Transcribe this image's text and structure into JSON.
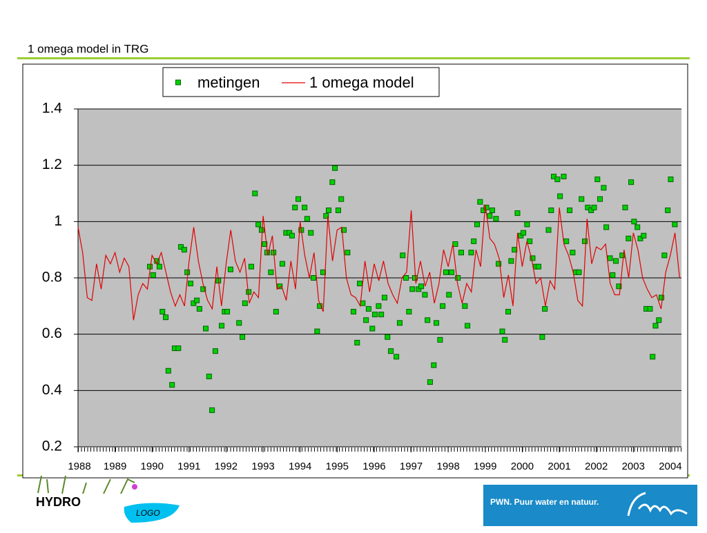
{
  "chart_data": {
    "type": "line",
    "title": "1 omega model in TRG",
    "xlim": [
      1988,
      2004.3
    ],
    "xticks": [
      1988,
      1989,
      1990,
      1991,
      1992,
      1993,
      1994,
      1995,
      1996,
      1997,
      1998,
      1999,
      2000,
      2001,
      2002,
      2003,
      2004
    ],
    "ylim": [
      0.2,
      1.4
    ],
    "yticks": [
      0.2,
      0.4,
      0.6,
      0.8,
      1,
      1.2,
      1.4
    ],
    "grid": true,
    "legend": "top",
    "series": [
      {
        "name": "metingen",
        "type": "scatter",
        "color": "#00d000",
        "x": [
          1989.94,
          1990.03,
          1990.13,
          1990.2,
          1990.28,
          1990.37,
          1990.44,
          1990.54,
          1990.61,
          1990.71,
          1990.78,
          1990.87,
          1990.95,
          1991.04,
          1991.12,
          1991.21,
          1991.28,
          1991.38,
          1991.45,
          1991.54,
          1991.62,
          1991.71,
          1991.79,
          1991.88,
          1991.96,
          1992.03,
          1992.12,
          1992.35,
          1992.44,
          1992.51,
          1992.61,
          1992.68,
          1992.78,
          1992.87,
          1992.96,
          1993.04,
          1993.11,
          1993.21,
          1993.28,
          1993.35,
          1993.45,
          1993.52,
          1993.62,
          1993.71,
          1993.78,
          1993.86,
          1993.95,
          1994.03,
          1994.12,
          1994.19,
          1994.29,
          1994.36,
          1994.46,
          1994.53,
          1994.62,
          1994.7,
          1994.77,
          1994.87,
          1994.94,
          1995.03,
          1995.11,
          1995.18,
          1995.28,
          1995.44,
          1995.54,
          1995.61,
          1995.69,
          1995.78,
          1995.85,
          1995.95,
          1996.02,
          1996.12,
          1996.19,
          1996.28,
          1996.36,
          1996.45,
          1996.6,
          1996.69,
          1996.77,
          1996.86,
          1996.94,
          1997.03,
          1997.1,
          1997.2,
          1997.27,
          1997.37,
          1997.44,
          1997.51,
          1997.61,
          1997.68,
          1997.78,
          1997.85,
          1997.94,
          1998.02,
          1998.09,
          1998.19,
          1998.26,
          1998.35,
          1998.45,
          1998.52,
          1998.62,
          1998.69,
          1998.78,
          1998.86,
          1998.95,
          1999.03,
          1999.12,
          1999.19,
          1999.29,
          1999.36,
          1999.46,
          1999.53,
          1999.62,
          1999.7,
          1999.79,
          1999.87,
          1999.96,
          2000.03,
          2000.13,
          2000.2,
          2000.28,
          2000.37,
          2000.44,
          2000.54,
          2000.61,
          2000.71,
          2000.78,
          2000.85,
          2000.95,
          2001.02,
          2001.12,
          2001.19,
          2001.28,
          2001.36,
          2001.45,
          2001.53,
          2001.6,
          2001.69,
          2001.77,
          2001.86,
          2001.94,
          2002.03,
          2002.1,
          2002.2,
          2002.27,
          2002.37,
          2002.44,
          2002.53,
          2002.61,
          2002.7,
          2002.78,
          2002.87,
          2002.94,
          2003.02,
          2003.11,
          2003.19,
          2003.28,
          2003.35,
          2003.45,
          2003.52,
          2003.6,
          2003.69,
          2003.76,
          2003.84,
          2003.93,
          2004.01,
          2004.12
        ],
        "values": [
          0.84,
          0.81,
          0.86,
          0.84,
          0.68,
          0.66,
          0.47,
          0.42,
          0.55,
          0.55,
          0.91,
          0.9,
          0.82,
          0.78,
          0.71,
          0.72,
          0.69,
          0.76,
          0.62,
          0.45,
          0.33,
          0.54,
          0.79,
          0.63,
          0.68,
          0.68,
          0.83,
          0.64,
          0.59,
          0.71,
          0.75,
          0.84,
          1.1,
          0.99,
          0.97,
          0.92,
          0.89,
          0.82,
          0.89,
          0.68,
          0.77,
          0.85,
          0.96,
          0.96,
          0.95,
          1.05,
          1.08,
          0.97,
          1.05,
          1.01,
          0.96,
          0.8,
          0.61,
          0.7,
          0.82,
          1.02,
          1.04,
          1.14,
          1.19,
          1.04,
          1.08,
          0.97,
          0.89,
          0.68,
          0.57,
          0.78,
          0.71,
          0.65,
          0.69,
          0.62,
          0.67,
          0.7,
          0.67,
          0.73,
          0.59,
          0.54,
          0.52,
          0.64,
          0.88,
          0.8,
          0.68,
          0.76,
          0.8,
          0.76,
          0.77,
          0.74,
          0.65,
          0.43,
          0.49,
          0.64,
          0.58,
          0.7,
          0.82,
          0.74,
          0.82,
          0.92,
          0.8,
          0.89,
          0.7,
          0.63,
          0.89,
          0.93,
          0.99,
          1.07,
          1.04,
          1.05,
          1.02,
          1.04,
          1.01,
          0.85,
          0.61,
          0.58,
          0.68,
          0.86,
          0.9,
          1.03,
          0.95,
          0.96,
          0.99,
          0.93,
          0.87,
          0.84,
          0.84,
          0.59,
          0.69,
          0.97,
          1.04,
          1.16,
          1.15,
          1.09,
          1.16,
          0.93,
          1.04,
          0.89,
          0.82,
          0.82,
          1.08,
          0.93,
          1.05,
          1.04,
          1.05,
          1.15,
          1.08,
          1.12,
          0.98,
          0.87,
          0.81,
          0.86,
          0.77,
          0.88,
          1.05,
          0.94,
          1.14,
          1,
          0.98,
          0.94,
          0.95,
          0.69,
          0.69,
          0.52,
          0.63,
          0.65,
          0.73,
          0.88,
          1.04,
          1.15,
          0.99
        ]
      },
      {
        "name": "1 omega model",
        "type": "line",
        "color": "#e00000",
        "x": [
          1988,
          1988.125,
          1988.25,
          1988.375,
          1988.5,
          1988.625,
          1988.75,
          1988.875,
          1989,
          1989.125,
          1989.25,
          1989.375,
          1989.5,
          1989.625,
          1989.75,
          1989.875,
          1990,
          1990.125,
          1990.25,
          1990.375,
          1990.5,
          1990.625,
          1990.75,
          1990.875,
          1991,
          1991.125,
          1991.25,
          1991.375,
          1991.5,
          1991.625,
          1991.75,
          1991.875,
          1992,
          1992.125,
          1992.25,
          1992.375,
          1992.5,
          1992.625,
          1992.75,
          1992.875,
          1993,
          1993.125,
          1993.25,
          1993.375,
          1993.5,
          1993.625,
          1993.75,
          1993.875,
          1994,
          1994.125,
          1994.25,
          1994.375,
          1994.5,
          1994.625,
          1994.75,
          1994.875,
          1995,
          1995.125,
          1995.25,
          1995.375,
          1995.5,
          1995.625,
          1995.75,
          1995.875,
          1996,
          1996.125,
          1996.25,
          1996.375,
          1996.5,
          1996.625,
          1996.75,
          1996.875,
          1997,
          1997.125,
          1997.25,
          1997.375,
          1997.5,
          1997.625,
          1997.75,
          1997.875,
          1998,
          1998.125,
          1998.25,
          1998.375,
          1998.5,
          1998.625,
          1998.75,
          1998.875,
          1999,
          1999.125,
          1999.25,
          1999.375,
          1999.5,
          1999.625,
          1999.75,
          1999.875,
          2000,
          2000.125,
          2000.25,
          2000.375,
          2000.5,
          2000.625,
          2000.75,
          2000.875,
          2001,
          2001.125,
          2001.25,
          2001.375,
          2001.5,
          2001.625,
          2001.75,
          2001.875,
          2002,
          2002.125,
          2002.25,
          2002.375,
          2002.5,
          2002.625,
          2002.75,
          2002.875,
          2003,
          2003.125,
          2003.25,
          2003.375,
          2003.5,
          2003.625,
          2003.75,
          2003.875,
          2004,
          2004.125,
          2004.25
        ],
        "values": [
          0.98,
          0.89,
          0.73,
          0.72,
          0.85,
          0.76,
          0.88,
          0.85,
          0.89,
          0.82,
          0.87,
          0.84,
          0.65,
          0.74,
          0.78,
          0.76,
          0.88,
          0.85,
          0.89,
          0.82,
          0.75,
          0.7,
          0.74,
          0.7,
          0.86,
          0.98,
          0.86,
          0.78,
          0.72,
          0.69,
          0.84,
          0.7,
          0.85,
          0.97,
          0.86,
          0.82,
          0.87,
          0.71,
          0.75,
          0.73,
          1.02,
          0.88,
          0.95,
          0.76,
          0.77,
          0.72,
          0.86,
          0.76,
          1,
          0.88,
          0.8,
          0.89,
          0.72,
          0.68,
          1.02,
          0.86,
          0.97,
          0.98,
          0.8,
          0.74,
          0.73,
          0.7,
          0.86,
          0.75,
          0.85,
          0.79,
          0.86,
          0.78,
          0.74,
          0.71,
          0.8,
          0.82,
          1.04,
          0.78,
          0.86,
          0.77,
          0.82,
          0.71,
          0.78,
          0.9,
          0.84,
          0.92,
          0.78,
          0.71,
          0.78,
          0.75,
          0.9,
          0.84,
          1.06,
          0.94,
          0.92,
          0.87,
          0.73,
          0.81,
          0.7,
          0.96,
          0.84,
          0.93,
          0.87,
          0.78,
          0.8,
          0.7,
          0.79,
          0.76,
          1.05,
          0.92,
          0.88,
          0.82,
          0.72,
          0.7,
          1.01,
          0.85,
          0.91,
          0.9,
          0.92,
          0.78,
          0.74,
          0.74,
          0.9,
          0.8,
          0.96,
          0.9,
          0.8,
          0.76,
          0.73,
          0.74,
          0.69,
          0.82,
          0.88,
          0.96,
          0.8
        ]
      }
    ]
  },
  "logos": {
    "left": "HYDRO",
    "left_sub": "LOGO",
    "right": "PWN. Puur water en natuur."
  }
}
